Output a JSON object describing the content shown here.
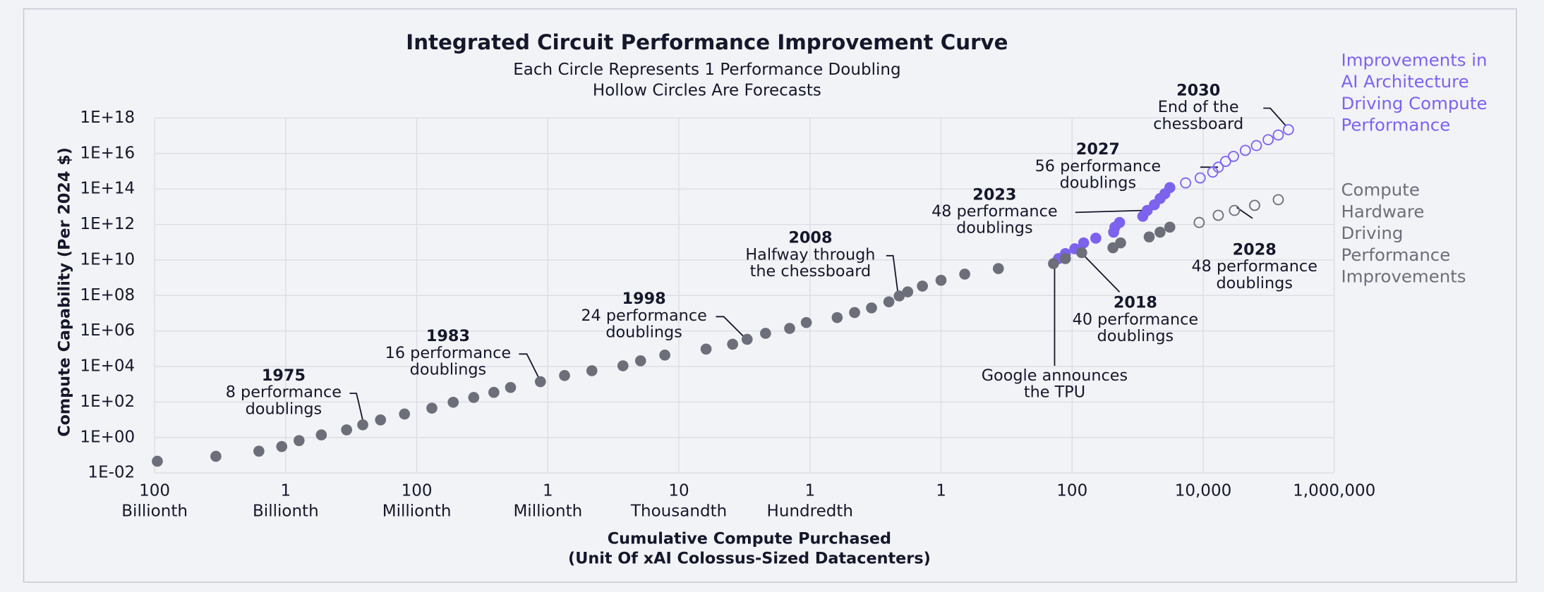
{
  "chart_data": {
    "type": "scatter",
    "title": "Integrated Circuit Performance Improvement Curve",
    "subtitle": "Each Circle Represents 1 Performance Doubling\nHollow Circles Are Forecasts",
    "xlabel": "Cumulative Compute Purchased\n(Unit Of xAI Colossus-Sized Datacenters)",
    "ylabel": "Compute Capability (Per 2024 $)",
    "xscale": "log",
    "yscale": "log",
    "grid": true,
    "legend": "right",
    "xlim": [
      1e-12,
      1000000.0
    ],
    "ylim": [
      0.01,
      1e+18
    ],
    "xticks": [
      {
        "value": 1e-12,
        "label": "100\nBillionth"
      },
      {
        "value": 1e-10,
        "label": "1\nBillionth"
      },
      {
        "value": 1e-08,
        "label": "100\nMillionth"
      },
      {
        "value": 1e-06,
        "label": "1\nMillionth"
      },
      {
        "value": 0.0001,
        "label": "10\nThousandth"
      },
      {
        "value": 0.01,
        "label": "1\nHundredth"
      },
      1,
      100,
      {
        "value": 10000,
        "label": "10,000"
      },
      {
        "value": 1000000,
        "label": "1,000,000"
      }
    ],
    "yticks": [
      {
        "value": 0.01,
        "label": "1E-02"
      },
      {
        "value": 1,
        "label": "1E+00"
      },
      {
        "value": 100,
        "label": "1E+02"
      },
      {
        "value": 10000,
        "label": "1E+04"
      },
      {
        "value": 1000000.0,
        "label": "1E+06"
      },
      {
        "value": 100000000.0,
        "label": "1E+08"
      },
      {
        "value": 10000000000.0,
        "label": "1E+10"
      },
      {
        "value": 1000000000000.0,
        "label": "1E+12"
      },
      {
        "value": 100000000000000.0,
        "label": "1E+14"
      },
      {
        "value": 1e+16,
        "label": "1E+16"
      },
      {
        "value": 1e+18,
        "label": "1E+18"
      }
    ],
    "series": [
      {
        "name": "Improvements in\nAI Architecture\nDriving Compute\nPerformance",
        "color": "#7d62ee",
        "hollow": false,
        "x": [
          62,
          79,
          110,
          150,
          230,
          430,
          450,
          530,
          1200,
          1400,
          1800,
          2200,
          2600,
          3100
        ],
        "values": [
          12000000000.0,
          23000000000.0,
          43000000000.0,
          92000000000.0,
          170000000000.0,
          370000000000.0,
          710000000000.0,
          1300000000000.0,
          2900000000000.0,
          6200000000000.0,
          13000000000000.0,
          29000000000000.0,
          54000000000000.0,
          120000000000000.0
        ]
      },
      {
        "color": "#7d62ee",
        "hollow": true,
        "x": [
          5400,
          9000,
          14000,
          17000,
          22000,
          29000,
          44000,
          65000,
          98000,
          140000,
          200000
        ],
        "values": [
          220000000000000.0,
          420000000000000.0,
          900000000000000.0,
          1700000000000000.0,
          3600000000000000.0,
          6900000000000000.0,
          1.5e+16,
          2.8e+16,
          6e+16,
          1.1e+17,
          2.2e+17
        ]
      },
      {
        "name": "Compute\nHardware\nDriving\nPerformance\nImprovements",
        "color": "#6c6e79",
        "hollow": false,
        "x": [
          1.1e-12,
          8.6e-12,
          3.9e-11,
          8.7e-11,
          1.6e-10,
          3.5e-10,
          8.5e-10,
          1.5e-09,
          2.8e-09,
          6.5e-09,
          1.7e-08,
          3.6e-08,
          7.4e-08,
          1.5e-07,
          2.7e-07,
          7.7e-07,
          1.8e-06,
          4.7e-06,
          1.4e-05,
          2.6e-05,
          6.1e-05,
          0.00026,
          0.00066,
          0.0011,
          0.0021,
          0.0049,
          0.0088,
          0.026,
          0.048,
          0.087,
          0.16,
          0.23,
          0.31,
          0.52,
          1.0,
          2.3,
          7.5,
          52,
          79,
          140,
          420,
          550,
          1500,
          2200,
          3100
        ],
        "values": [
          0.046,
          0.087,
          0.17,
          0.31,
          0.67,
          1.4,
          2.7,
          5.2,
          9.8,
          21,
          45,
          97,
          180,
          350,
          660,
          1400,
          3100,
          5800,
          11000,
          21000,
          44000,
          96000,
          180000.0,
          340000.0,
          740000.0,
          1400000.0,
          3000000.0,
          5700000.0,
          11000000.0,
          20000000.0,
          44000000.0,
          94000000.0,
          160000000.0,
          340000000.0,
          720000000.0,
          1600000000.0,
          3300000000.0,
          6300000000.0,
          12000000000.0,
          26000000000.0,
          49000000000.0,
          92000000000.0,
          200000000000.0,
          370000000000.0,
          710000000000.0
        ]
      },
      {
        "color": "#6c6e79",
        "hollow": true,
        "x": [
          8700,
          17000,
          30000,
          61000,
          140000
        ],
        "values": [
          1300000000000.0,
          3300000000000.0,
          6200000000000.0,
          12000000000000.0,
          25000000000000.0
        ]
      }
    ],
    "annotations": [
      {
        "year": "1975",
        "text": "8 performance\ndoublings"
      },
      {
        "year": "1983",
        "text": "16 performance\ndoublings"
      },
      {
        "year": "1998",
        "text": "24 performance\ndoublings"
      },
      {
        "year": "2008",
        "text": "Halfway through\nthe chessboard"
      },
      {
        "year": "2018",
        "text": "40 performance\ndoublings"
      },
      {
        "text": "Google announces\nthe TPU"
      },
      {
        "year": "2023",
        "text": "48 performance\ndoublings"
      },
      {
        "year": "2027",
        "text": "56 performance\ndoublings"
      },
      {
        "year": "2028",
        "text": "48 performance\ndoublings"
      },
      {
        "year": "2030",
        "text": "End of the\nchessboard"
      }
    ]
  }
}
